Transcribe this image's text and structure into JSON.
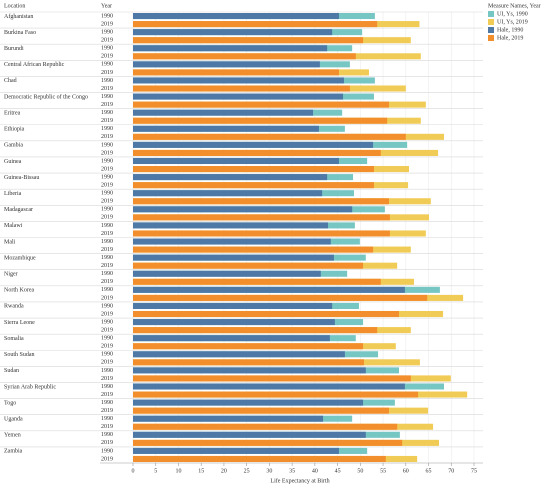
{
  "chart_data": {
    "type": "bar",
    "row_header": "Location",
    "year_header": "Year",
    "years": [
      "1990",
      "2019"
    ],
    "categories": [
      "Afghanistan",
      "Burkina Faso",
      "Burundi",
      "Central African Republic",
      "Chad",
      "Democratic Republic of the Congo",
      "Eritrea",
      "Ethiopia",
      "Gambia",
      "Guinea",
      "Guinea-Bissau",
      "Liberia",
      "Madagascar",
      "Malawi",
      "Mali",
      "Mozambique",
      "Niger",
      "North Korea",
      "Rwanda",
      "Sierra Leone",
      "Somalia",
      "South Sudan",
      "Sudan",
      "Syrian Arab Republic",
      "Togo",
      "Uganda",
      "Yemen",
      "Zambia"
    ],
    "series": [
      {
        "name": "UI, Ys, 1990",
        "color": "#76c6c3",
        "values": [
          53.2,
          50.4,
          48.2,
          47.7,
          53.2,
          53,
          46,
          46.6,
          60.3,
          51.5,
          48.4,
          48.6,
          55.4,
          48.8,
          49.9,
          51.2,
          47.1,
          67.5,
          49.7,
          50.6,
          49,
          53.9,
          58.5,
          68.4,
          57.6,
          48.2,
          58.7,
          51.5
        ]
      },
      {
        "name": "UI, Ys, 2019",
        "color": "#f0cb55",
        "values": [
          63,
          61.1,
          63.3,
          51.9,
          60,
          64.4,
          63.3,
          68.4,
          67.1,
          60.7,
          60.5,
          65.5,
          65.1,
          64.4,
          61.1,
          58.1,
          61.8,
          72.6,
          68.2,
          61.1,
          57.8,
          63.1,
          69.9,
          73.5,
          64.9,
          66,
          67.3,
          62.5
        ]
      },
      {
        "name": "Hale, 1990",
        "color": "#4e79a7",
        "values": [
          45.3,
          43.8,
          42.7,
          41.1,
          46.4,
          46.2,
          39.6,
          40.9,
          52.8,
          45.3,
          42.7,
          41.6,
          48.2,
          42.9,
          43.5,
          44.2,
          41.3,
          59.8,
          43.8,
          44.4,
          43.3,
          46.6,
          51.2,
          59.8,
          50.6,
          41.8,
          51.2,
          45.3
        ]
      },
      {
        "name": "Hale, 2019",
        "color": "#f28e2b",
        "values": [
          53.7,
          50.6,
          49,
          45.3,
          47.7,
          56.3,
          55.9,
          60,
          54.5,
          53,
          53,
          56.3,
          56.5,
          56.5,
          52.8,
          50.6,
          54.5,
          64.7,
          58.5,
          53.7,
          50.6,
          50.8,
          61.1,
          62.7,
          56.3,
          58.1,
          59.2,
          55.6
        ]
      }
    ],
    "xlabel": "Life Expectancy at Birth",
    "legend_title": "Measure Names, Year",
    "xlim": [
      0,
      75
    ],
    "xticks": [
      0,
      5,
      10,
      15,
      20,
      25,
      30,
      35,
      40,
      45,
      50,
      55,
      60,
      65,
      70,
      75
    ],
    "grid": true
  }
}
